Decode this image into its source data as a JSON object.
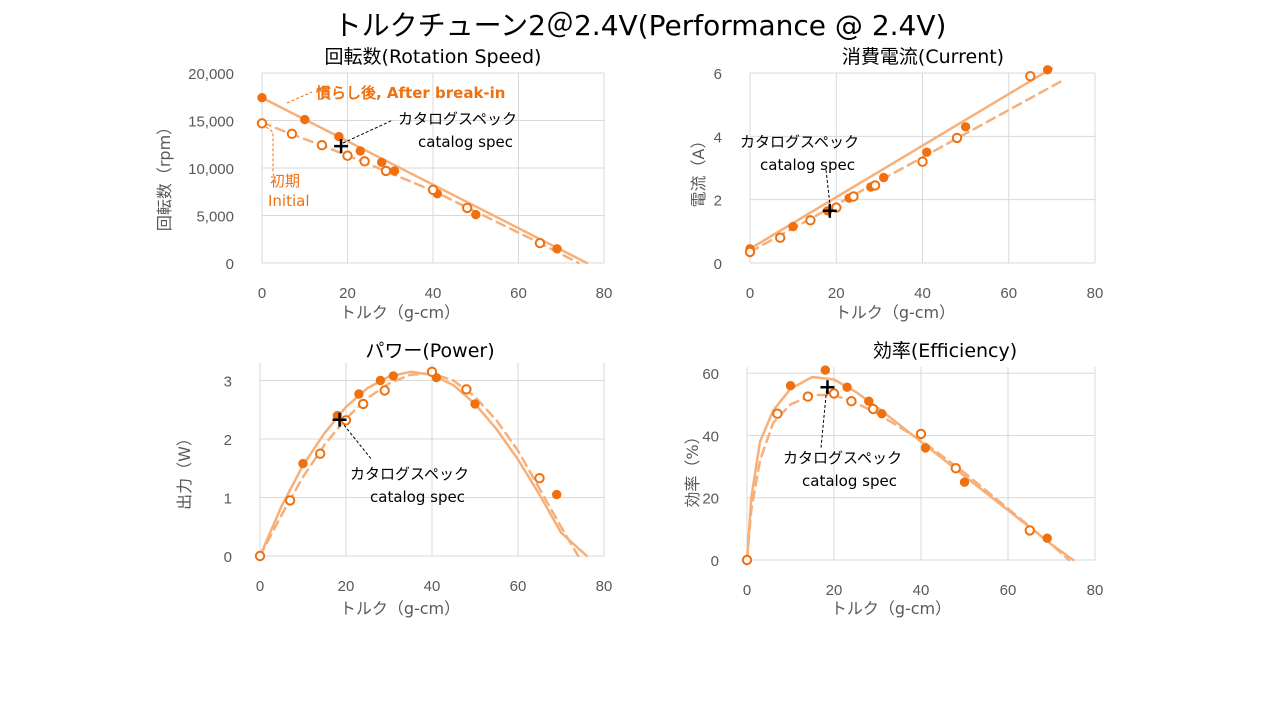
{
  "title": "トルクチューン2＠2.4V(Performance @ 2.4V)",
  "colors": {
    "fit": "#f7b07a",
    "point": "#f07010",
    "grid": "#d9d9d9",
    "spec": "#000000"
  },
  "chart_data": [
    {
      "type": "scatter",
      "title": "回転数(Rotation Speed)",
      "xlabel": "トルク（g-cm）",
      "ylabel": "回転数（rpm）",
      "xlim": [
        0,
        80
      ],
      "ylim": [
        0,
        20000
      ],
      "xticks": [
        "0",
        "20",
        "40",
        "60",
        "80"
      ],
      "yticks": [
        "0",
        "5,000",
        "10,000",
        "15,000",
        "20,000"
      ],
      "grid": true,
      "series": [
        {
          "name": "慣らし後, After break-in",
          "marker": "filled",
          "fit": "solid",
          "points": [
            [
              0,
              17400
            ],
            [
              10,
              15100
            ],
            [
              18,
              13300
            ],
            [
              23,
              11800
            ],
            [
              28,
              10600
            ],
            [
              31,
              9700
            ],
            [
              41,
              7300
            ],
            [
              50,
              5100
            ],
            [
              69,
              1500
            ]
          ],
          "fit_line": [
            [
              0,
              17400
            ],
            [
              76,
              0
            ]
          ]
        },
        {
          "name": "初期 Initial",
          "marker": "open",
          "fit": "dashed",
          "points": [
            [
              0,
              14700
            ],
            [
              7,
              13600
            ],
            [
              14,
              12400
            ],
            [
              20,
              11300
            ],
            [
              24,
              10700
            ],
            [
              29,
              9700
            ],
            [
              40,
              7700
            ],
            [
              48,
              5800
            ],
            [
              65,
              2100
            ]
          ],
          "fit_line": [
            [
              0,
              14800
            ],
            [
              5,
              13900
            ],
            [
              15,
              12200
            ],
            [
              25,
              10400
            ],
            [
              40,
              7600
            ],
            [
              50,
              5400
            ],
            [
              65,
              2100
            ],
            [
              74,
              0
            ]
          ]
        }
      ],
      "spec_point": [
        18.5,
        12300
      ],
      "annotations": {
        "break_in": "慣らし後, After break-in",
        "initial": "初期",
        "initial_en": "Initial",
        "spec": "カタログスペック",
        "spec_en": "catalog spec"
      }
    },
    {
      "type": "scatter",
      "title": "消費電流(Current)",
      "xlabel": "トルク（g-cm）",
      "ylabel": "電流（A）",
      "xlim": [
        0,
        80
      ],
      "ylim": [
        0,
        6
      ],
      "xticks": [
        "0",
        "20",
        "40",
        "60",
        "80"
      ],
      "yticks": [
        "0",
        "2",
        "4",
        "6"
      ],
      "grid": true,
      "series": [
        {
          "name": "慣らし後, After break-in",
          "marker": "filled",
          "fit": "solid",
          "points": [
            [
              0,
              0.45
            ],
            [
              10,
              1.15
            ],
            [
              18,
              1.65
            ],
            [
              23,
              2.05
            ],
            [
              28,
              2.4
            ],
            [
              31,
              2.7
            ],
            [
              41,
              3.5
            ],
            [
              50,
              4.3
            ],
            [
              69,
              6.1
            ]
          ],
          "fit_line": [
            [
              0,
              0.45
            ],
            [
              70,
              6.15
            ]
          ]
        },
        {
          "name": "初期 Initial",
          "marker": "open",
          "fit": "dashed",
          "points": [
            [
              0,
              0.35
            ],
            [
              7,
              0.8
            ],
            [
              14,
              1.35
            ],
            [
              20,
              1.75
            ],
            [
              24,
              2.1
            ],
            [
              29,
              2.45
            ],
            [
              40,
              3.2
            ],
            [
              48,
              3.95
            ],
            [
              65,
              5.9
            ]
          ],
          "fit_line": [
            [
              0,
              0.35
            ],
            [
              73,
              5.8
            ]
          ]
        }
      ],
      "spec_point": [
        18.5,
        1.65
      ],
      "annotations": {
        "spec": "カタログスペック",
        "spec_en": "catalog spec"
      }
    },
    {
      "type": "scatter",
      "title": "パワー(Power)",
      "xlabel": "トルク（g-cm）",
      "ylabel": "出力（W）",
      "xlim": [
        0,
        80
      ],
      "ylim": [
        0,
        3.3
      ],
      "xticks": [
        "0",
        "20",
        "40",
        "60",
        "80"
      ],
      "yticks": [
        "0",
        "1",
        "2",
        "3"
      ],
      "grid": true,
      "series": [
        {
          "name": "慣らし後, After break-in",
          "marker": "filled",
          "fit": "solid",
          "points": [
            [
              0,
              0
            ],
            [
              10,
              1.58
            ],
            [
              18,
              2.4
            ],
            [
              23,
              2.77
            ],
            [
              28,
              3.0
            ],
            [
              31,
              3.08
            ],
            [
              41,
              3.05
            ],
            [
              50,
              2.6
            ],
            [
              69,
              1.05
            ]
          ],
          "fit_line": [
            [
              0,
              0
            ],
            [
              5,
              0.85
            ],
            [
              10,
              1.55
            ],
            [
              15,
              2.1
            ],
            [
              20,
              2.55
            ],
            [
              25,
              2.87
            ],
            [
              30,
              3.07
            ],
            [
              35,
              3.15
            ],
            [
              40,
              3.1
            ],
            [
              45,
              2.92
            ],
            [
              50,
              2.6
            ],
            [
              55,
              2.17
            ],
            [
              60,
              1.65
            ],
            [
              65,
              1.05
            ],
            [
              70,
              0.4
            ],
            [
              76,
              0
            ]
          ]
        },
        {
          "name": "初期 Initial",
          "marker": "open",
          "fit": "dashed",
          "points": [
            [
              0,
              0
            ],
            [
              7,
              0.95
            ],
            [
              14,
              1.75
            ],
            [
              20,
              2.32
            ],
            [
              24,
              2.6
            ],
            [
              29,
              2.83
            ],
            [
              40,
              3.15
            ],
            [
              48,
              2.85
            ],
            [
              65,
              1.33
            ]
          ],
          "fit_line": [
            [
              0,
              0
            ],
            [
              5,
              0.7
            ],
            [
              10,
              1.35
            ],
            [
              15,
              1.9
            ],
            [
              20,
              2.35
            ],
            [
              25,
              2.7
            ],
            [
              30,
              2.95
            ],
            [
              35,
              3.1
            ],
            [
              40,
              3.12
            ],
            [
              45,
              3.0
            ],
            [
              50,
              2.72
            ],
            [
              55,
              2.32
            ],
            [
              60,
              1.8
            ],
            [
              65,
              1.15
            ],
            [
              70,
              0.5
            ],
            [
              74,
              0
            ]
          ]
        }
      ],
      "spec_point": [
        18.5,
        2.33
      ],
      "annotations": {
        "spec": "カタログスペック",
        "spec_en": "catalog spec"
      }
    },
    {
      "type": "scatter",
      "title": "効率(Efficiency)",
      "xlabel": "トルク（g-cm）",
      "ylabel": "効率（%）",
      "xlim": [
        0,
        80
      ],
      "ylim": [
        0,
        62
      ],
      "xticks": [
        "0",
        "20",
        "40",
        "60",
        "80"
      ],
      "yticks": [
        "0",
        "20",
        "40",
        "60"
      ],
      "grid": true,
      "series": [
        {
          "name": "慣らし後, After break-in",
          "marker": "filled",
          "fit": "solid",
          "points": [
            [
              0,
              0
            ],
            [
              10,
              56
            ],
            [
              18,
              61
            ],
            [
              23,
              55.5
            ],
            [
              28,
              51
            ],
            [
              31,
              47
            ],
            [
              41,
              36
            ],
            [
              50,
              25
            ],
            [
              69,
              7
            ]
          ],
          "fit_line": [
            [
              0,
              0
            ],
            [
              1,
              20
            ],
            [
              3,
              38
            ],
            [
              6,
              48
            ],
            [
              10,
              55
            ],
            [
              15,
              58.8
            ],
            [
              20,
              58
            ],
            [
              25,
              54
            ],
            [
              30,
              49
            ],
            [
              40,
              38
            ],
            [
              50,
              27
            ],
            [
              60,
              16
            ],
            [
              70,
              5
            ],
            [
              75,
              0
            ]
          ]
        },
        {
          "name": "初期 Initial",
          "marker": "open",
          "fit": "dashed",
          "points": [
            [
              0,
              0
            ],
            [
              7,
              47
            ],
            [
              14,
              52.5
            ],
            [
              20,
              53.5
            ],
            [
              24,
              51
            ],
            [
              29,
              48.5
            ],
            [
              40,
              40.5
            ],
            [
              48,
              29.5
            ],
            [
              65,
              9.5
            ]
          ],
          "fit_line": [
            [
              0,
              0
            ],
            [
              1,
              16
            ],
            [
              3,
              32
            ],
            [
              6,
              44
            ],
            [
              10,
              50
            ],
            [
              15,
              53
            ],
            [
              20,
              53
            ],
            [
              25,
              50.5
            ],
            [
              30,
              47
            ],
            [
              40,
              38.5
            ],
            [
              50,
              28
            ],
            [
              60,
              16.5
            ],
            [
              70,
              5
            ],
            [
              74,
              0
            ]
          ]
        }
      ],
      "spec_point": [
        18.5,
        55.5
      ],
      "annotations": {
        "spec": "カタログスペック",
        "spec_en": "catalog spec"
      }
    }
  ]
}
